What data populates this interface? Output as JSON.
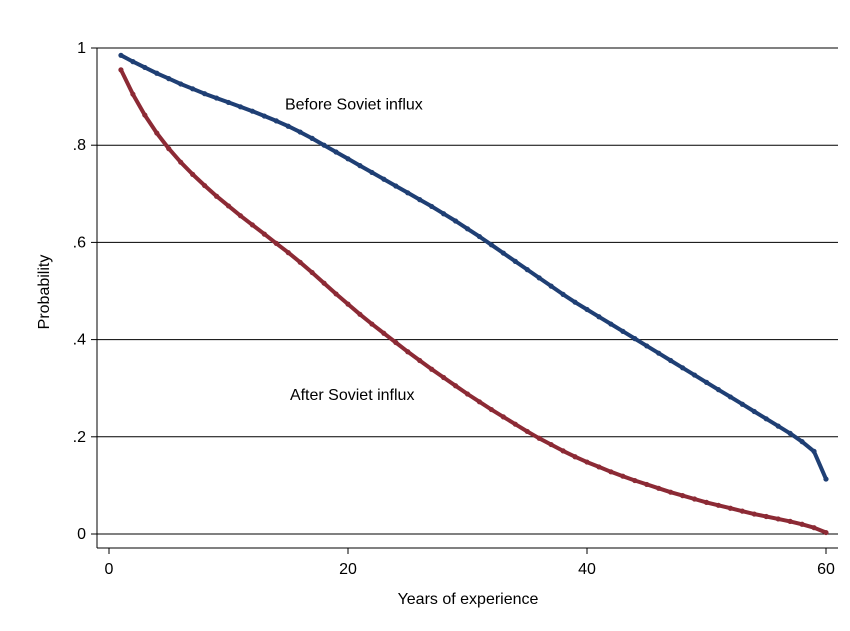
{
  "chart_data": {
    "type": "line",
    "title": "",
    "xlabel": "Years of experience",
    "ylabel": "Probability",
    "xlim": [
      0,
      60
    ],
    "ylim": [
      0,
      1
    ],
    "x_ticks": [
      0,
      20,
      40,
      60
    ],
    "x_tick_labels": [
      "0",
      "20",
      "40",
      "60"
    ],
    "y_ticks": [
      0,
      0.2,
      0.4,
      0.6,
      0.8,
      1
    ],
    "y_tick_labels": [
      "0",
      ".2",
      ".4",
      ".6",
      ".8",
      "1"
    ],
    "grid": "horizontal",
    "legend": "none",
    "annotations": [
      {
        "text": "Before Soviet influx",
        "x": 21,
        "y": 0.88
      },
      {
        "text": "After Soviet influx",
        "x": 21,
        "y": 0.29
      }
    ],
    "series": [
      {
        "color": "#1f3f74",
        "x": [
          1,
          2,
          3,
          4,
          5,
          6,
          7,
          8,
          9,
          10,
          11,
          12,
          13,
          14,
          15,
          16,
          17,
          18,
          19,
          20,
          21,
          22,
          23,
          24,
          25,
          26,
          27,
          28,
          29,
          30,
          31,
          32,
          33,
          34,
          35,
          36,
          37,
          38,
          39,
          40,
          41,
          42,
          43,
          44,
          45,
          46,
          47,
          48,
          49,
          50,
          51,
          52,
          53,
          54,
          55,
          56,
          57,
          58,
          59,
          60
        ],
        "values": [
          0.985,
          0.972,
          0.96,
          0.948,
          0.937,
          0.926,
          0.916,
          0.906,
          0.897,
          0.888,
          0.879,
          0.87,
          0.86,
          0.85,
          0.839,
          0.827,
          0.814,
          0.8,
          0.786,
          0.772,
          0.758,
          0.744,
          0.73,
          0.716,
          0.702,
          0.688,
          0.674,
          0.659,
          0.644,
          0.628,
          0.612,
          0.595,
          0.578,
          0.561,
          0.544,
          0.527,
          0.51,
          0.493,
          0.477,
          0.462,
          0.447,
          0.432,
          0.417,
          0.402,
          0.387,
          0.372,
          0.357,
          0.342,
          0.327,
          0.312,
          0.297,
          0.282,
          0.267,
          0.252,
          0.237,
          0.222,
          0.207,
          0.19,
          0.17,
          0.113
        ]
      },
      {
        "color": "#8c2a35",
        "x": [
          1,
          2,
          3,
          4,
          5,
          6,
          7,
          8,
          9,
          10,
          11,
          12,
          13,
          14,
          15,
          16,
          17,
          18,
          19,
          20,
          21,
          22,
          23,
          24,
          25,
          26,
          27,
          28,
          29,
          30,
          31,
          32,
          33,
          34,
          35,
          36,
          37,
          38,
          39,
          40,
          41,
          42,
          43,
          44,
          45,
          46,
          47,
          48,
          49,
          50,
          51,
          52,
          53,
          54,
          55,
          56,
          57,
          58,
          59,
          60
        ],
        "values": [
          0.955,
          0.905,
          0.862,
          0.825,
          0.793,
          0.765,
          0.74,
          0.717,
          0.695,
          0.675,
          0.655,
          0.636,
          0.617,
          0.598,
          0.579,
          0.559,
          0.538,
          0.516,
          0.494,
          0.473,
          0.452,
          0.432,
          0.413,
          0.394,
          0.375,
          0.357,
          0.339,
          0.322,
          0.305,
          0.288,
          0.272,
          0.256,
          0.241,
          0.226,
          0.211,
          0.197,
          0.184,
          0.171,
          0.159,
          0.148,
          0.138,
          0.128,
          0.119,
          0.11,
          0.102,
          0.094,
          0.086,
          0.079,
          0.072,
          0.065,
          0.059,
          0.053,
          0.047,
          0.041,
          0.036,
          0.031,
          0.026,
          0.02,
          0.013,
          0.003
        ]
      }
    ]
  }
}
